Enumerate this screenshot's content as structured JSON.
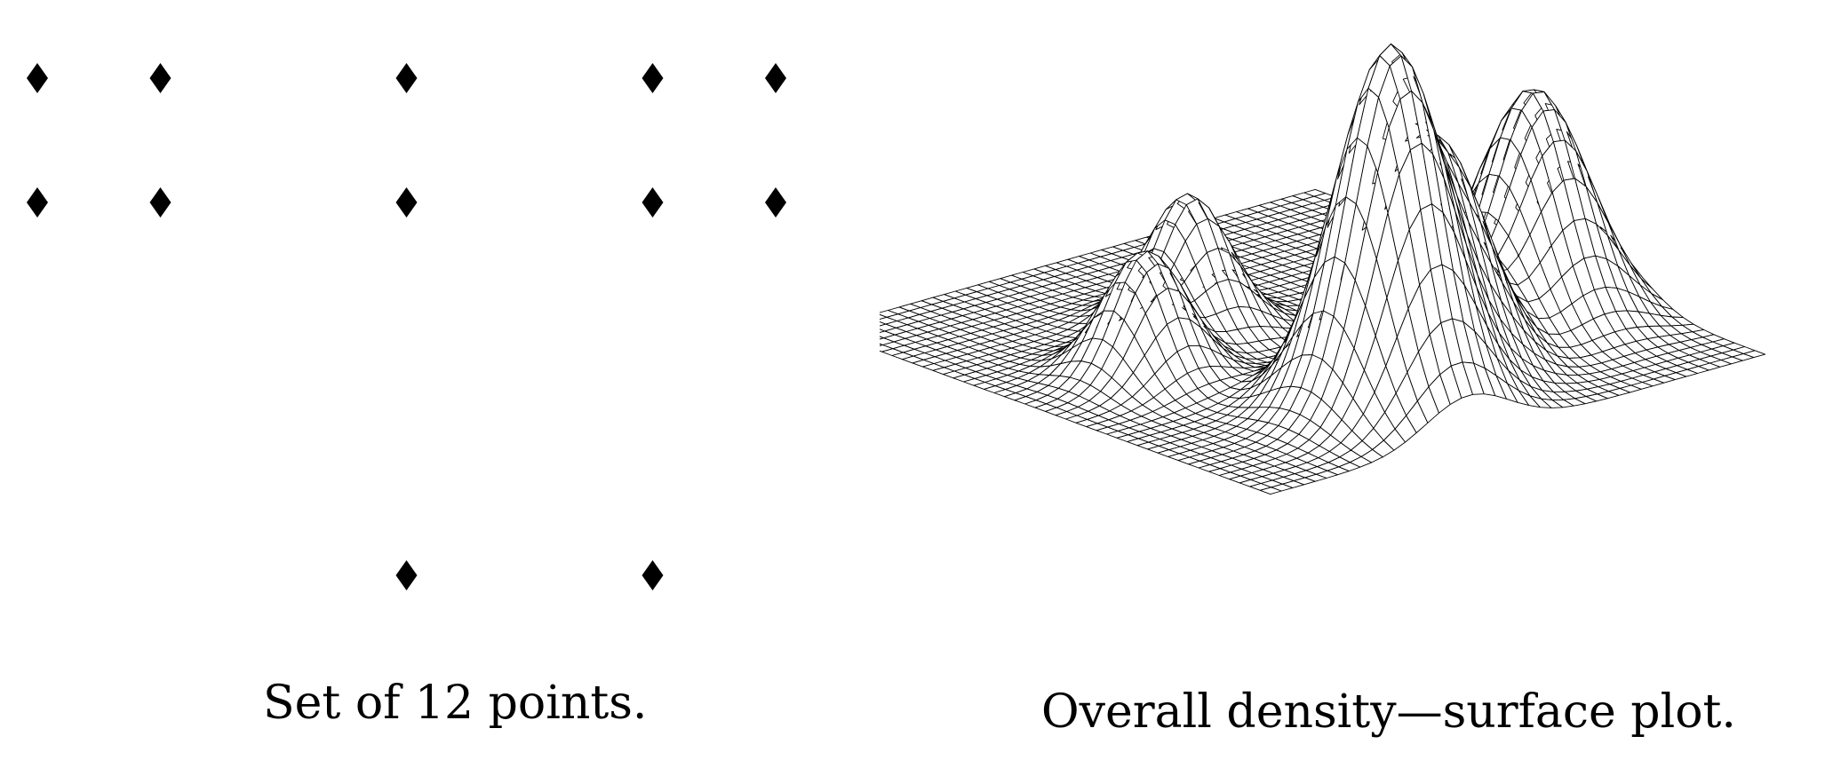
{
  "left_panel": {
    "caption": "Set of 12 points.",
    "marker_symbol": "diamond",
    "marker_color": "#000000",
    "point_count": 12
  },
  "right_panel": {
    "caption": "Overall density—surface plot.",
    "line_color": "#000000",
    "fill_color": "#ffffff"
  },
  "chart_data": [
    {
      "type": "scatter",
      "title": "Set of 12 points.",
      "points": [
        {
          "x": 0,
          "y": 4
        },
        {
          "x": 1,
          "y": 4
        },
        {
          "x": 3,
          "y": 4
        },
        {
          "x": 5,
          "y": 4
        },
        {
          "x": 6,
          "y": 4
        },
        {
          "x": 0,
          "y": 3
        },
        {
          "x": 1,
          "y": 3
        },
        {
          "x": 3,
          "y": 3
        },
        {
          "x": 5,
          "y": 3
        },
        {
          "x": 6,
          "y": 3
        },
        {
          "x": 3,
          "y": 0
        },
        {
          "x": 5,
          "y": 0
        }
      ]
    },
    {
      "type": "surface",
      "title": "Overall density—surface plot.",
      "peaks": [
        {
          "u": -0.7,
          "v": 0.3,
          "height": 0.55,
          "spread": 0.17
        },
        {
          "u": -0.15,
          "v": 0.5,
          "height": 0.48,
          "spread": 0.15
        },
        {
          "u": 0.2,
          "v": 0.65,
          "height": 0.85,
          "spread": 0.17
        },
        {
          "u": 0.15,
          "v": -0.3,
          "height": 0.32,
          "spread": 0.13
        },
        {
          "u": 0.55,
          "v": -0.05,
          "height": 0.3,
          "spread": 0.13
        }
      ]
    }
  ]
}
